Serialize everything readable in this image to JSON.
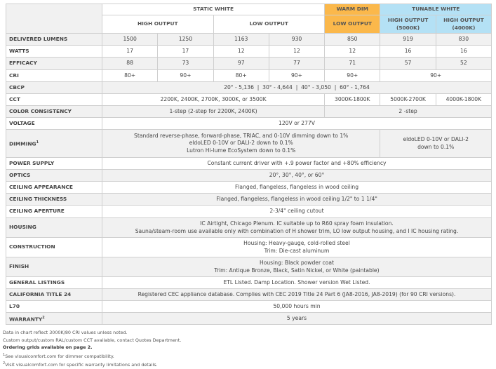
{
  "colors": {
    "warm_dim": "#fbb84b",
    "tunable_white": "#b4e1f5",
    "row_alt": "#f1f1f1"
  },
  "header": {
    "static_white": "STATIC WHITE",
    "warm_dim": "WARM DIM",
    "tunable_white": "TUNABLE WHITE",
    "high_output": "HIGH OUTPUT",
    "low_output": "LOW OUTPUT",
    "warm_low_output": "LOW OUTPUT",
    "ho_5000": "HIGH OUTPUT (5000K)",
    "ho_4000": "HIGH OUTPUT (4000K)"
  },
  "rows": {
    "lumens": {
      "label": "DELIVERED LUMENS",
      "values": [
        "1500",
        "1250",
        "1163",
        "930",
        "850",
        "919",
        "830"
      ]
    },
    "watts": {
      "label": "WATTS",
      "values": [
        "17",
        "17",
        "12",
        "12",
        "12",
        "16",
        "16"
      ]
    },
    "efficacy": {
      "label": "EFFICACY",
      "values": [
        "88",
        "73",
        "97",
        "77",
        "71",
        "57",
        "52"
      ]
    },
    "cri": {
      "label": "CRI",
      "values": [
        "80+",
        "90+",
        "80+",
        "90+",
        "90+",
        "90+"
      ]
    },
    "cbcp": {
      "label": "CBCP",
      "value": "20° - 5,136  |  30° - 4,644  |  40° - 3,050  |  60° - 1,764"
    },
    "cct": {
      "label": "CCT",
      "values": [
        "2200K, 2400K, 2700K, 3000K, or 3500K",
        "3000K-1800K",
        "5000K-2700K",
        "4000K-1800K"
      ]
    },
    "color_consistency": {
      "label": "COLOR CONSISTENCY",
      "values": [
        "1-step (2-step for 2200K, 2400K)",
        "2 -step"
      ]
    },
    "voltage": {
      "label": "VOLTAGE",
      "value": "120V or 277V"
    },
    "dimming": {
      "label": "DIMMING",
      "sup": "1",
      "lines": [
        "Standard reverse-phase, forward-phase, TRIAC, and 0-10V dimming down to 1%",
        "eldoLED 0-10V or DALI-2 down to 0.1%",
        "Lutron Hi-lume EcoSystem down to 0.1%"
      ],
      "tunable_lines": [
        "eldoLED 0-10V or DALI-2",
        "down to 0.1%"
      ]
    },
    "power": {
      "label": "POWER SUPPLY",
      "value": "Constant current driver with +.9 power factor and +80% efficiency"
    },
    "optics": {
      "label": "OPTICS",
      "value": "20°, 30°, 40°, or 60°"
    },
    "ceiling_appearance": {
      "label": "CEILING APPEARANCE",
      "value": "Flanged, flangeless, flangeless in wood ceiling"
    },
    "ceiling_thickness": {
      "label": "CEILING THICKNESS",
      "value": "Flanged, flangeless, flangeless in wood ceiling 1/2\" to 1 1/4\""
    },
    "ceiling_aperture": {
      "label": "CEILING APERTURE",
      "value": "2-3/4\" ceiling cutout"
    },
    "housing": {
      "label": "HOUSING",
      "lines": [
        "IC Airtight, Chicago Plenum. IC suitable up to R60 spray foam insulation.",
        "Sauna/steam-room use available only with combination of H shower trim, LO low output housing, and I IC housing rating."
      ]
    },
    "construction": {
      "label": "CONSTRUCTION",
      "lines": [
        "Housing: Heavy-gauge, cold-rolled steel",
        "Trim: Die-cast aluminum"
      ]
    },
    "finish": {
      "label": "FINISH",
      "lines": [
        "Housing: Black powder coat",
        "Trim: Antique Bronze, Black, Satin Nickel, or White (paintable)"
      ]
    },
    "listings": {
      "label": "GENERAL LISTINGS",
      "value": "ETL Listed. Damp Location. Shower version Wet Listed."
    },
    "title24": {
      "label": "CALIFORNIA TITLE 24",
      "value": "Registered CEC appliance database. Complies with CEC 2019 Title 24 Part 6 (JA8-2016, JA8-2019) (for 90 CRI versions)."
    },
    "l70": {
      "label": "L70",
      "value": "50,000 hours min"
    },
    "warranty": {
      "label": "WARRANTY",
      "sup": "2",
      "value": "5 years"
    }
  },
  "footnotes": {
    "note1": "Data in chart reflect 3000K/80 CRI values unless noted.",
    "note2": "Custom output/custom RAL/custom CCT available, contact Quotes Department.",
    "note3": "Ordering grids available on page 2.",
    "fn1_num": "1",
    "fn1": "See visualcomfort.com for dimmer compatibility.",
    "fn2_num": "2",
    "fn2": "Visit visualcomfort.com for specific warranty limitations and details."
  }
}
